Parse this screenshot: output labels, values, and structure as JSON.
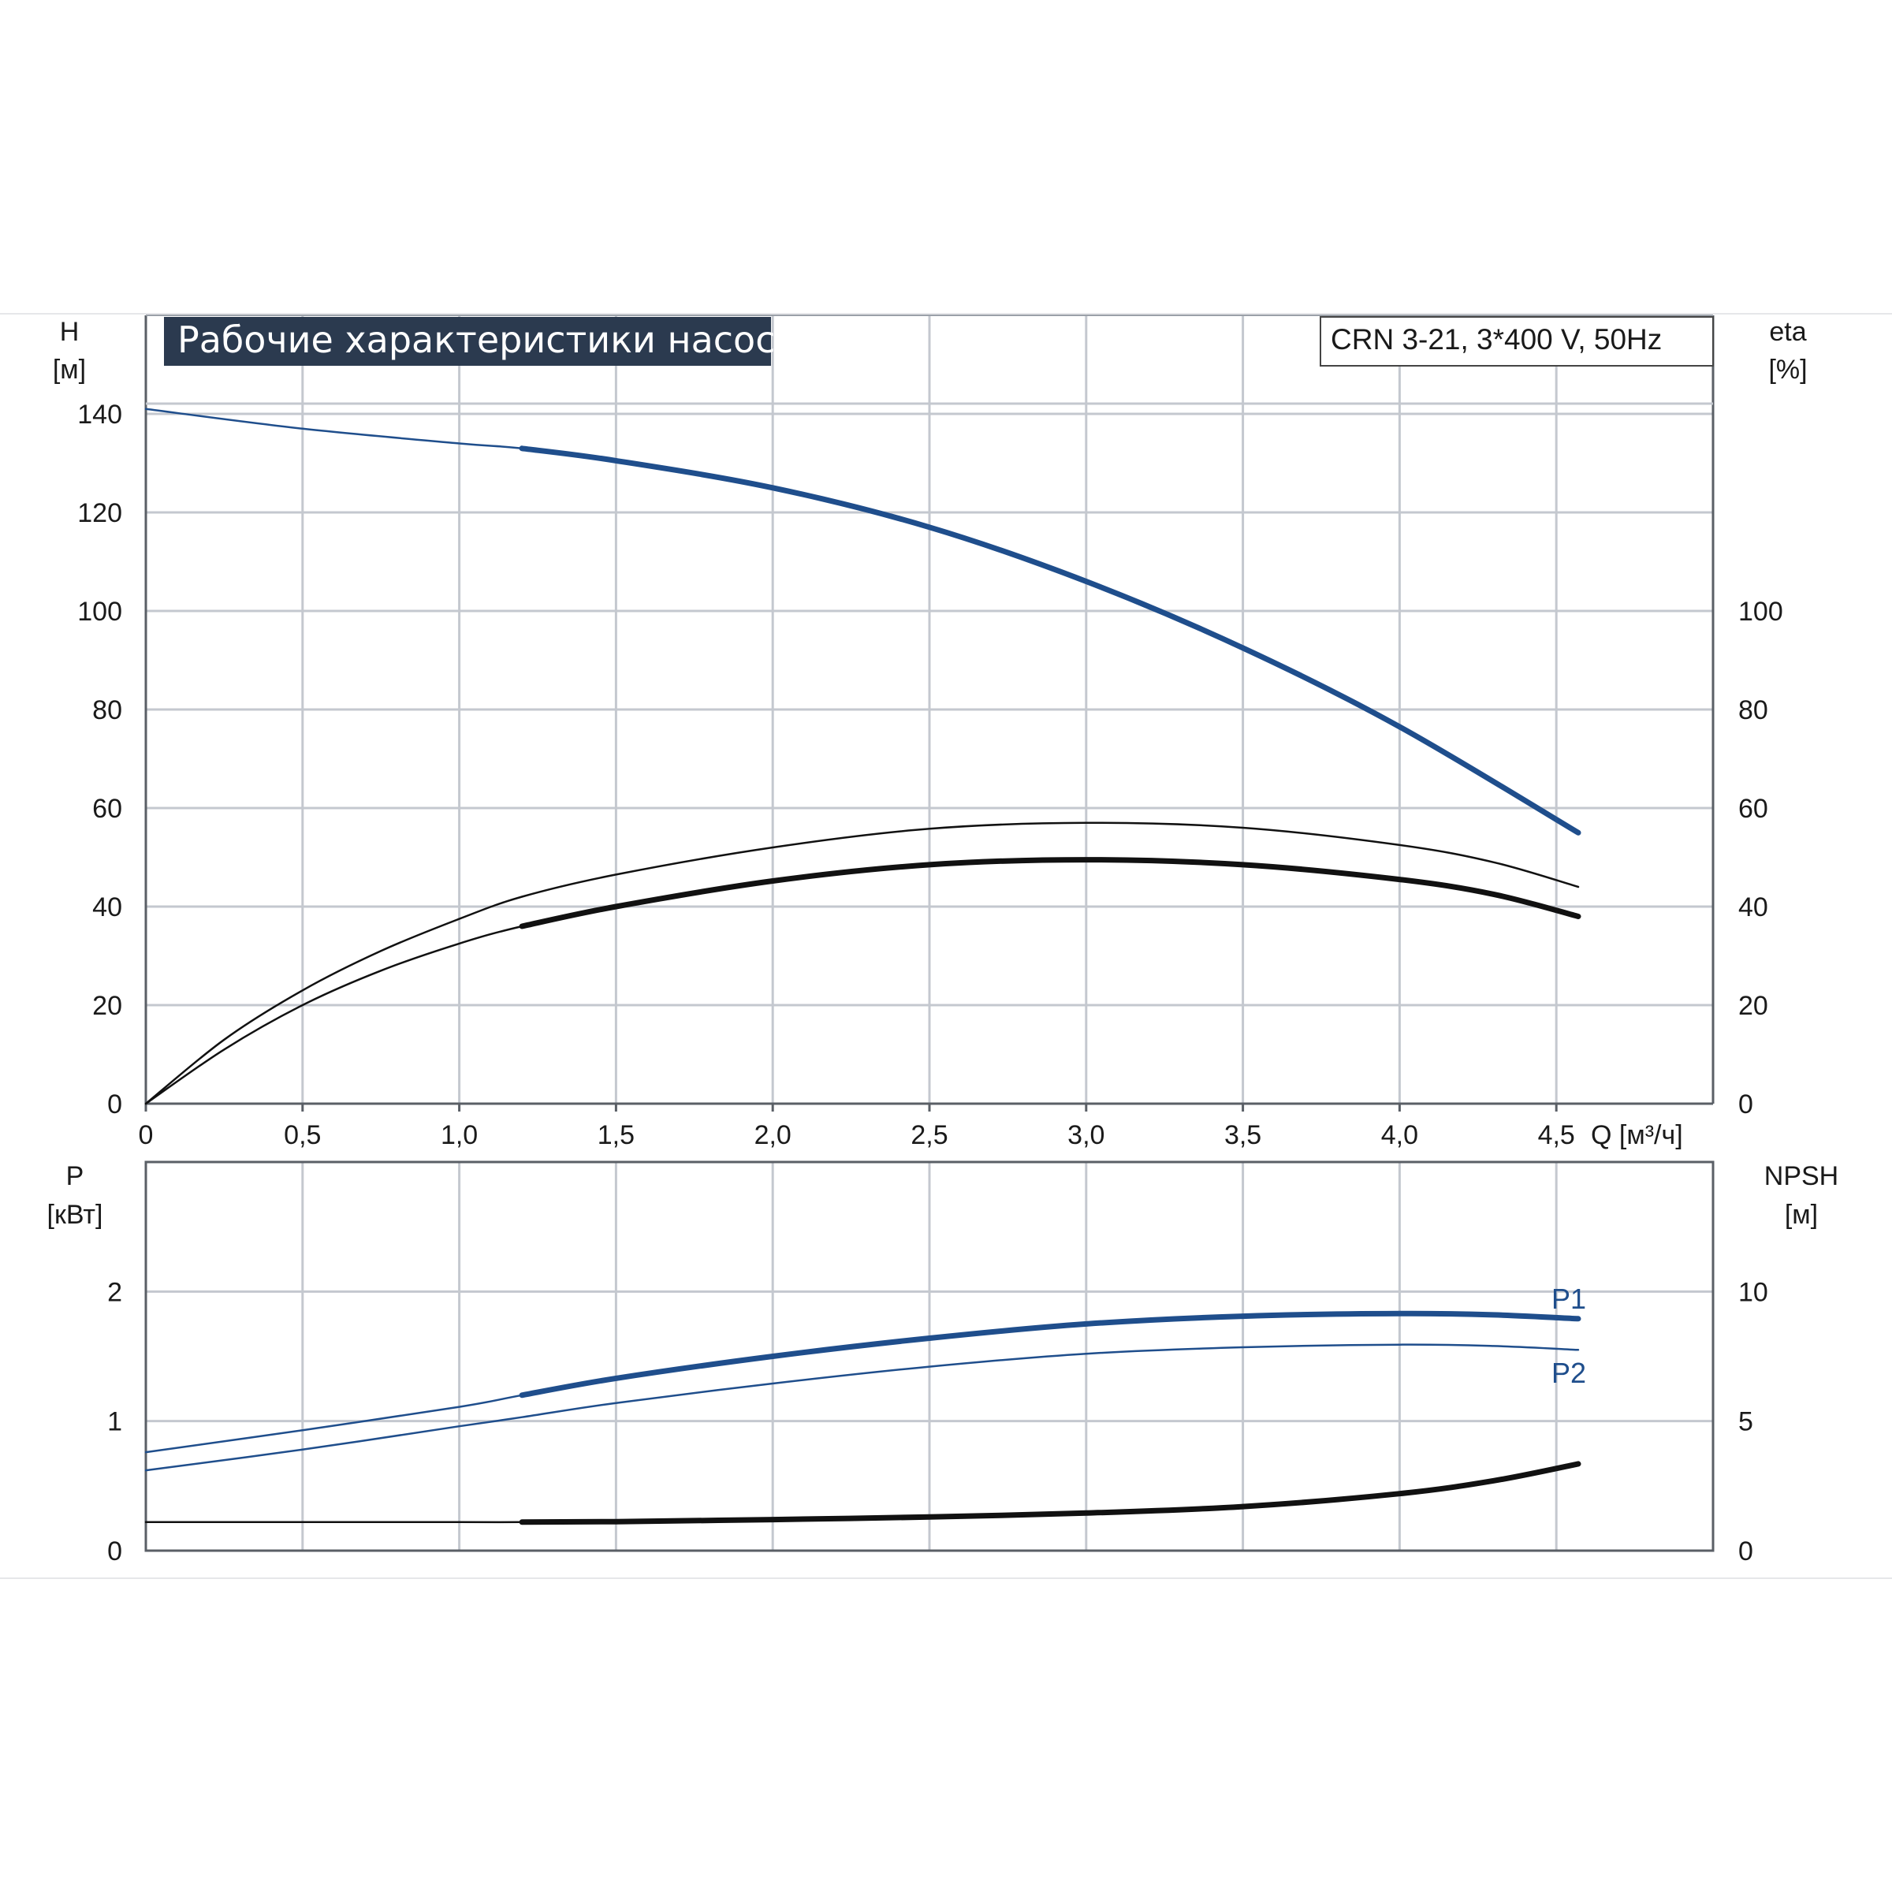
{
  "title": "Рабочие характеристики насоса",
  "model": "CRN 3-21, 3*400 V, 50Hz",
  "colors": {
    "blue": "#1f4e8c",
    "black": "#111111",
    "grid": "#c4c8cf",
    "title_bg": "#2b3a4f"
  },
  "chart_data": [
    {
      "type": "line",
      "name": "upper-panel",
      "xlabel": "Q [м³/ч]",
      "ylabel_left": {
        "symbol": "H",
        "unit": "[м]"
      },
      "ylabel_right": {
        "symbol": "eta",
        "unit": "[%]"
      },
      "xlim": [
        0,
        5.0
      ],
      "ylim": [
        0,
        160
      ],
      "x_ticks": [
        "0",
        "0,5",
        "1,0",
        "1,5",
        "2,0",
        "2,5",
        "3,0",
        "3,5",
        "4,0",
        "4,5"
      ],
      "x_tick_values": [
        0,
        0.5,
        1.0,
        1.5,
        2.0,
        2.5,
        3.0,
        3.5,
        4.0,
        4.5
      ],
      "y_left_ticks": [
        0,
        20,
        40,
        60,
        80,
        100,
        120,
        140
      ],
      "y_right_ticks": [
        0,
        20,
        40,
        60,
        80,
        100
      ],
      "grid": true,
      "series": [
        {
          "key": "H",
          "axis": "left",
          "color": "blue",
          "x": [
            0,
            0.5,
            1.0,
            1.2,
            1.5,
            2.0,
            2.5,
            3.0,
            3.5,
            4.0,
            4.57
          ],
          "y": [
            141,
            137,
            134,
            133,
            130.5,
            125,
            117,
            106,
            92.5,
            76.5,
            55
          ],
          "bold_from": 1.2
        },
        {
          "key": "eta-total",
          "axis": "right",
          "color": "black",
          "x": [
            0,
            0.25,
            0.5,
            0.75,
            1.0,
            1.2,
            1.5,
            2.0,
            2.5,
            3.0,
            3.5,
            4.0,
            4.3,
            4.57
          ],
          "y": [
            0,
            13,
            23,
            31,
            37.5,
            42,
            46.5,
            52,
            55.8,
            57,
            56,
            52.5,
            49,
            44
          ],
          "bold_from": null
        },
        {
          "key": "eta-pump",
          "axis": "right",
          "color": "black",
          "x": [
            0,
            0.25,
            0.5,
            0.75,
            1.0,
            1.2,
            1.5,
            2.0,
            2.5,
            3.0,
            3.5,
            4.0,
            4.3,
            4.57
          ],
          "y": [
            0,
            11,
            20,
            27,
            32.5,
            36,
            40,
            45.2,
            48.5,
            49.5,
            48.5,
            45.5,
            42.5,
            38
          ],
          "bold_from": 1.2
        }
      ]
    },
    {
      "type": "line",
      "name": "lower-panel",
      "ylabel_left": {
        "symbol": "P",
        "unit": "[кВт]"
      },
      "ylabel_right": {
        "symbol": "NPSH",
        "unit": "[м]"
      },
      "xlim": [
        0,
        5.0
      ],
      "ylim": [
        0,
        3
      ],
      "y_left_ticks": [
        0,
        1,
        2
      ],
      "y_right_ticks": [
        0,
        5,
        10
      ],
      "y_right_lim": [
        0,
        15
      ],
      "grid": true,
      "series": [
        {
          "key": "P1",
          "name": "P1",
          "axis": "left",
          "color": "blue",
          "x": [
            0,
            0.5,
            1.0,
            1.2,
            1.5,
            2.0,
            2.5,
            3.0,
            3.5,
            4.0,
            4.3,
            4.57
          ],
          "y": [
            0.76,
            0.93,
            1.11,
            1.2,
            1.33,
            1.5,
            1.64,
            1.75,
            1.81,
            1.83,
            1.82,
            1.79
          ],
          "bold_from": 1.2
        },
        {
          "key": "P2",
          "name": "P2",
          "axis": "left",
          "color": "blue",
          "x": [
            0,
            0.5,
            1.0,
            1.2,
            1.5,
            2.0,
            2.5,
            3.0,
            3.5,
            4.0,
            4.3,
            4.57
          ],
          "y": [
            0.62,
            0.78,
            0.96,
            1.03,
            1.14,
            1.29,
            1.42,
            1.52,
            1.57,
            1.59,
            1.58,
            1.55
          ],
          "bold_from": null
        },
        {
          "key": "NPSH",
          "axis": "right",
          "color": "black",
          "x": [
            0,
            0.5,
            1.0,
            1.2,
            1.5,
            2.0,
            2.5,
            3.0,
            3.5,
            4.0,
            4.3,
            4.57
          ],
          "y": [
            1.1,
            1.1,
            1.1,
            1.1,
            1.12,
            1.2,
            1.3,
            1.45,
            1.7,
            2.2,
            2.7,
            3.35
          ],
          "bold_from": 1.2
        }
      ]
    }
  ]
}
